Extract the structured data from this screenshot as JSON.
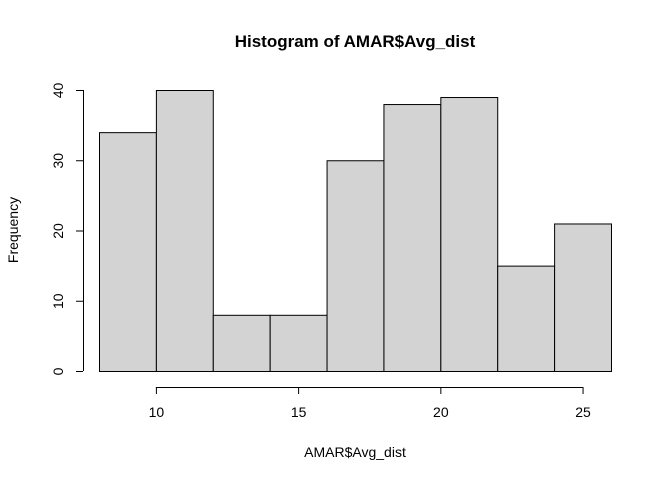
{
  "chart_data": {
    "type": "bar",
    "title": "Histogram of AMAR$Avg_dist",
    "xlabel": "AMAR$Avg_dist",
    "ylabel": "Frequency",
    "bin_edges": [
      8,
      10,
      12,
      14,
      16,
      18,
      20,
      22,
      24,
      26
    ],
    "values": [
      34,
      40,
      8,
      8,
      30,
      38,
      39,
      15,
      21
    ],
    "xlim": [
      8,
      26
    ],
    "ylim": [
      0,
      40
    ],
    "x_ticks": [
      10,
      15,
      20,
      25
    ],
    "y_ticks": [
      0,
      10,
      20,
      30,
      40
    ],
    "bar_color": "#d3d3d3",
    "edge_color": "#000000",
    "grid": false
  }
}
